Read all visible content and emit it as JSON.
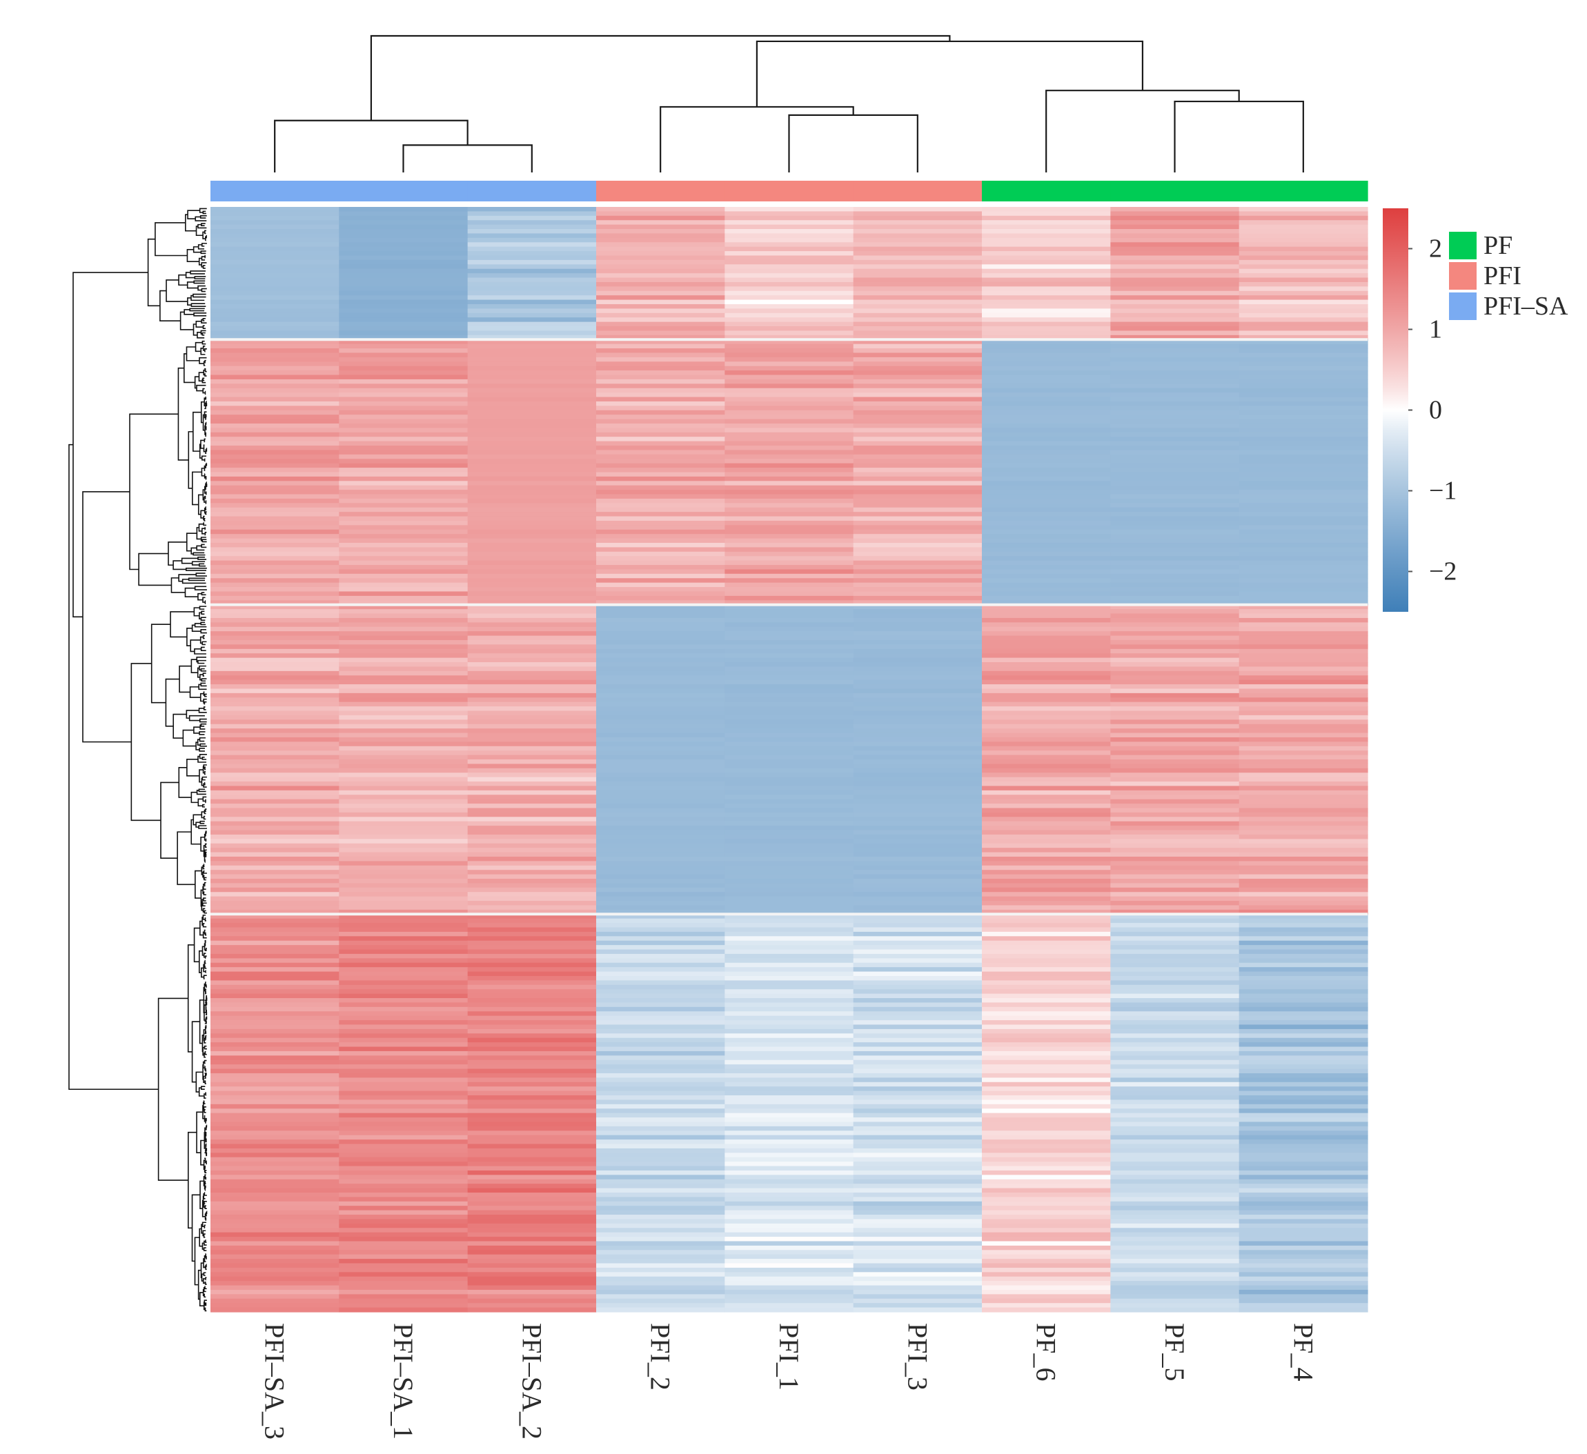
{
  "chart_data": {
    "type": "heatmap",
    "columns": [
      "PFI–SA_3",
      "PFI–SA_1",
      "PFI–SA_2",
      "PFI_2",
      "PFI_1",
      "PFI_3",
      "PF_6",
      "PF_5",
      "PF_4"
    ],
    "column_groups": [
      "PFI–SA",
      "PFI–SA",
      "PFI–SA",
      "PFI",
      "PFI",
      "PFI",
      "PF",
      "PF",
      "PF"
    ],
    "legend": [
      {
        "label": "PF",
        "color": "#00cc55"
      },
      {
        "label": "PFI",
        "color": "#f4877f"
      },
      {
        "label": "PFI–SA",
        "color": "#7aabf2"
      }
    ],
    "color_scale": {
      "min": -2.5,
      "max": 2.5,
      "ticks": [
        {
          "value": 2,
          "label": "2"
        },
        {
          "value": 1,
          "label": "1"
        },
        {
          "value": 0,
          "label": "0"
        },
        {
          "value": -1,
          "label": "−1"
        },
        {
          "value": -2,
          "label": "−2"
        }
      ],
      "low_color": "#3f7fb8",
      "mid_color": "#ffffff",
      "high_color": "#de3f3f"
    },
    "row_blocks": [
      {
        "rows": 120,
        "means": [
          -1.1,
          -1.4,
          -0.9,
          0.9,
          0.5,
          0.7,
          0.5,
          1.0,
          0.7
        ]
      },
      {
        "rows": 240,
        "means": [
          1.0,
          1.0,
          1.1,
          0.9,
          1.0,
          0.9,
          -1.2,
          -1.2,
          -1.2
        ]
      },
      {
        "rows": 280,
        "means": [
          0.9,
          0.9,
          0.9,
          -1.2,
          -1.2,
          -1.2,
          1.0,
          1.0,
          1.0
        ]
      },
      {
        "rows": 360,
        "means": [
          1.3,
          1.4,
          1.5,
          -0.6,
          -0.4,
          -0.5,
          0.4,
          -0.6,
          -1.0
        ]
      }
    ],
    "col_dendrogram": {
      "merges": [
        [
          1,
          2,
          0.2
        ],
        [
          0,
          9,
          0.38
        ],
        [
          4,
          5,
          0.42
        ],
        [
          3,
          11,
          0.48
        ],
        [
          7,
          8,
          0.52
        ],
        [
          6,
          13,
          0.6
        ],
        [
          12,
          14,
          0.96
        ],
        [
          10,
          15,
          1.0
        ]
      ]
    },
    "title": "",
    "xlabel": "",
    "ylabel": ""
  }
}
